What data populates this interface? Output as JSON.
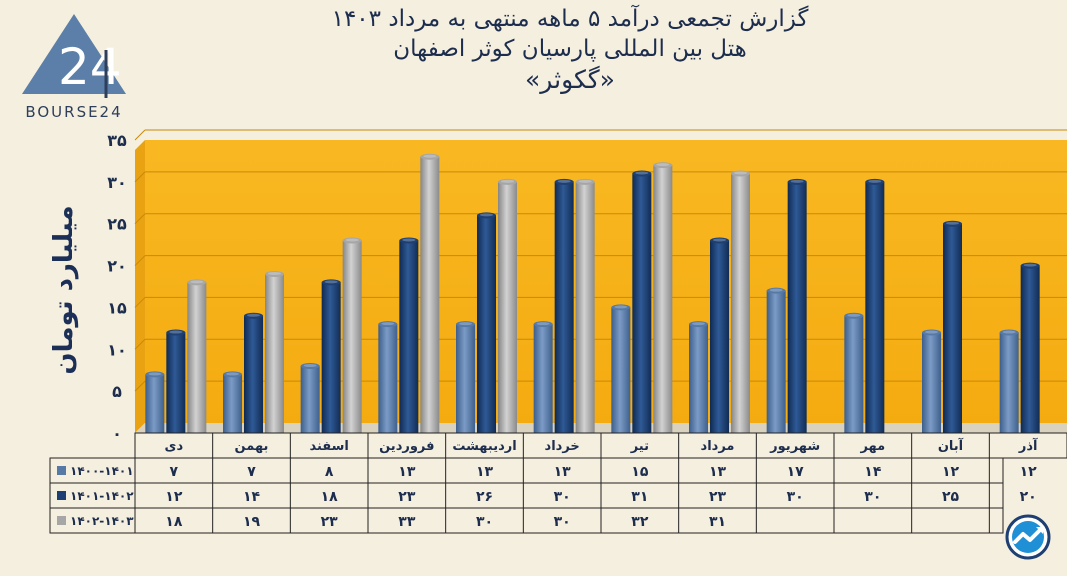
{
  "header": {
    "line1": "گزارش تجمعی درآمد ۵ ماهه منتهی به مرداد ۱۴۰۳",
    "line2": "هتل بین المللی پارسیان کوثر اصفهان",
    "line3": "«گکوثر»"
  },
  "logo": {
    "text": "BOURSE24",
    "mark": "24"
  },
  "icons": {
    "logo": "bourse24-logo-icon",
    "corner": "chart-trend-icon"
  },
  "colors": {
    "plot_background": "#f8b51d",
    "series_1400_1401": "#5679a6",
    "series_1401_1402": "#1d3f72",
    "series_1402_1403": "#a6a6a6",
    "text": "#1d2d4e"
  },
  "chart_data": {
    "type": "bar",
    "title": "گزارش تجمعی درآمد ۵ ماهه منتهی به مرداد ۱۴۰۳",
    "subtitle": "هتل بین المللی پارسیان کوثر اصفهان «گکوثر»",
    "xlabel": "",
    "ylabel": "میلیارد تومان",
    "ylim": [
      0,
      35
    ],
    "yticks": [
      "۰",
      "۵",
      "۱۰",
      "۱۵",
      "۲۰",
      "۲۵",
      "۳۰",
      "۳۵"
    ],
    "ytick_values": [
      0,
      5,
      10,
      15,
      20,
      25,
      30,
      35
    ],
    "grid": true,
    "legend": "data-table-left",
    "categories": [
      "دی",
      "بهمن",
      "اسفند",
      "فروردین",
      "اردیبهشت",
      "خرداد",
      "تیر",
      "مرداد",
      "شهریور",
      "مهر",
      "آبان",
      "آذر"
    ],
    "series": [
      {
        "name": "۱۴۰۰-۱۴۰۱",
        "values": [
          7,
          7,
          8,
          13,
          13,
          13,
          15,
          13,
          17,
          14,
          12,
          12
        ],
        "labels": [
          "۷",
          "۷",
          "۸",
          "۱۳",
          "۱۳",
          "۱۳",
          "۱۵",
          "۱۳",
          "۱۷",
          "۱۴",
          "۱۲",
          "۱۲"
        ]
      },
      {
        "name": "۱۴۰۱-۱۴۰۲",
        "values": [
          12,
          14,
          18,
          23,
          26,
          30,
          31,
          23,
          30,
          30,
          25,
          20
        ],
        "labels": [
          "۱۲",
          "۱۴",
          "۱۸",
          "۲۳",
          "۲۶",
          "۳۰",
          "۳۱",
          "۲۳",
          "۳۰",
          "۳۰",
          "۲۵",
          "۲۰"
        ]
      },
      {
        "name": "۱۴۰۲-۱۴۰۳",
        "values": [
          18,
          19,
          23,
          33,
          30,
          30,
          32,
          31,
          null,
          null,
          null,
          null
        ],
        "labels": [
          "۱۸",
          "۱۹",
          "۲۳",
          "۳۳",
          "۳۰",
          "۳۰",
          "۳۲",
          "۳۱",
          "",
          "",
          "",
          ""
        ]
      }
    ]
  }
}
